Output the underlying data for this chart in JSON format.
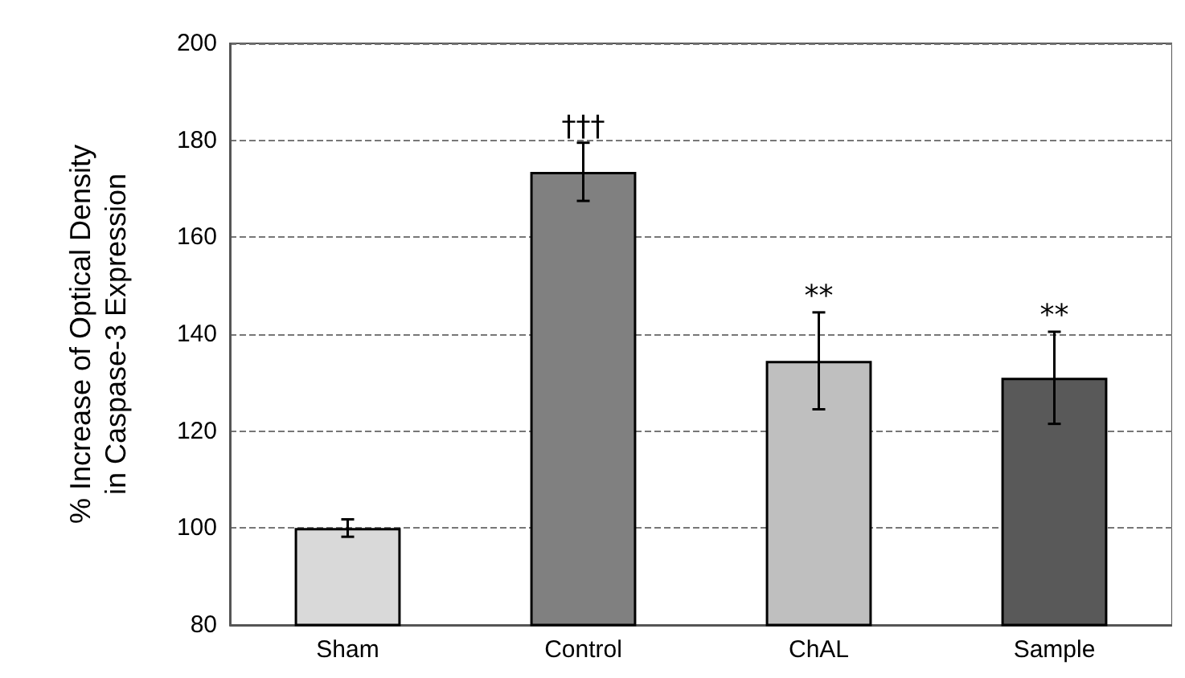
{
  "chart_data": {
    "type": "bar",
    "ylabel": "% Increase of Optical Density\nin Caspase-3 Expression",
    "categories": [
      "Sham",
      "Control",
      "ChAL",
      "Sample"
    ],
    "values": [
      100,
      173.5,
      134.5,
      131
    ],
    "colors": [
      "#d9d9d9",
      "#808080",
      "#bfbfbf",
      "#595959"
    ],
    "errors": [
      1.8,
      6,
      10,
      9.5
    ],
    "ylim": [
      80,
      200
    ],
    "yticks": [
      80,
      100,
      120,
      140,
      160,
      180,
      200
    ],
    "grid": "y",
    "annotations": [
      {
        "text": "†††",
        "x": "Control",
        "y": 179.5
      },
      {
        "text": "**",
        "x": "ChAL",
        "y": 144.5
      },
      {
        "text": "**",
        "x": "Sample",
        "y": 140.5
      }
    ]
  }
}
